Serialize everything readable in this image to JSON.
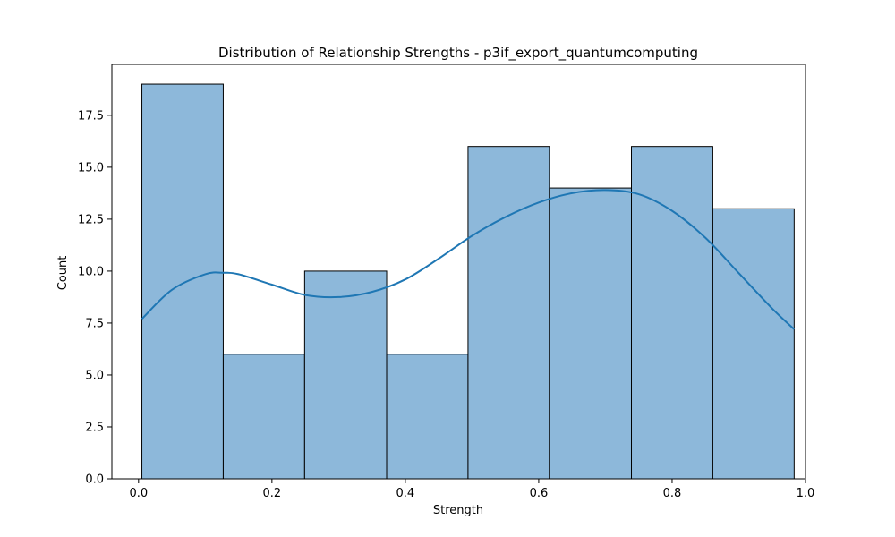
{
  "chart_data": {
    "type": "bar",
    "title": "Distribution of Relationship Strengths - p3if_export_quantumcomputing",
    "xlabel": "Strength",
    "ylabel": "Count",
    "xlim": [
      -0.04,
      1.0
    ],
    "ylim": [
      0,
      19.95
    ],
    "x_ticks": [
      0.0,
      0.2,
      0.4,
      0.6,
      0.8,
      1.0
    ],
    "x_tick_labels": [
      "0.0",
      "0.2",
      "0.4",
      "0.6",
      "0.8",
      "1.0"
    ],
    "y_ticks": [
      0,
      2.5,
      5,
      7.5,
      10,
      12.5,
      15,
      17.5
    ],
    "y_tick_labels": [
      "0.0",
      "2.5",
      "5.0",
      "7.5",
      "10.0",
      "12.5",
      "15.0",
      "17.5"
    ],
    "bins": [
      {
        "start": 0.005,
        "end": 0.127,
        "count": 19
      },
      {
        "start": 0.127,
        "end": 0.249,
        "count": 6
      },
      {
        "start": 0.249,
        "end": 0.372,
        "count": 10
      },
      {
        "start": 0.372,
        "end": 0.494,
        "count": 6
      },
      {
        "start": 0.494,
        "end": 0.616,
        "count": 16
      },
      {
        "start": 0.616,
        "end": 0.739,
        "count": 14
      },
      {
        "start": 0.739,
        "end": 0.861,
        "count": 16
      },
      {
        "start": 0.861,
        "end": 0.983,
        "count": 13
      }
    ],
    "kde": {
      "x": [
        0.005,
        0.05,
        0.1,
        0.127,
        0.15,
        0.2,
        0.25,
        0.3,
        0.35,
        0.4,
        0.45,
        0.5,
        0.55,
        0.6,
        0.65,
        0.7,
        0.75,
        0.8,
        0.85,
        0.9,
        0.95,
        0.983
      ],
      "y": [
        7.7,
        9.1,
        9.85,
        9.92,
        9.85,
        9.35,
        8.85,
        8.75,
        9.0,
        9.6,
        10.6,
        11.7,
        12.6,
        13.3,
        13.75,
        13.9,
        13.7,
        12.9,
        11.6,
        9.9,
        8.2,
        7.2
      ]
    },
    "bar_color": "#8db8da",
    "bar_edge_color": "#000000",
    "kde_color": "#1f77b4",
    "grid": false,
    "legend": false
  }
}
